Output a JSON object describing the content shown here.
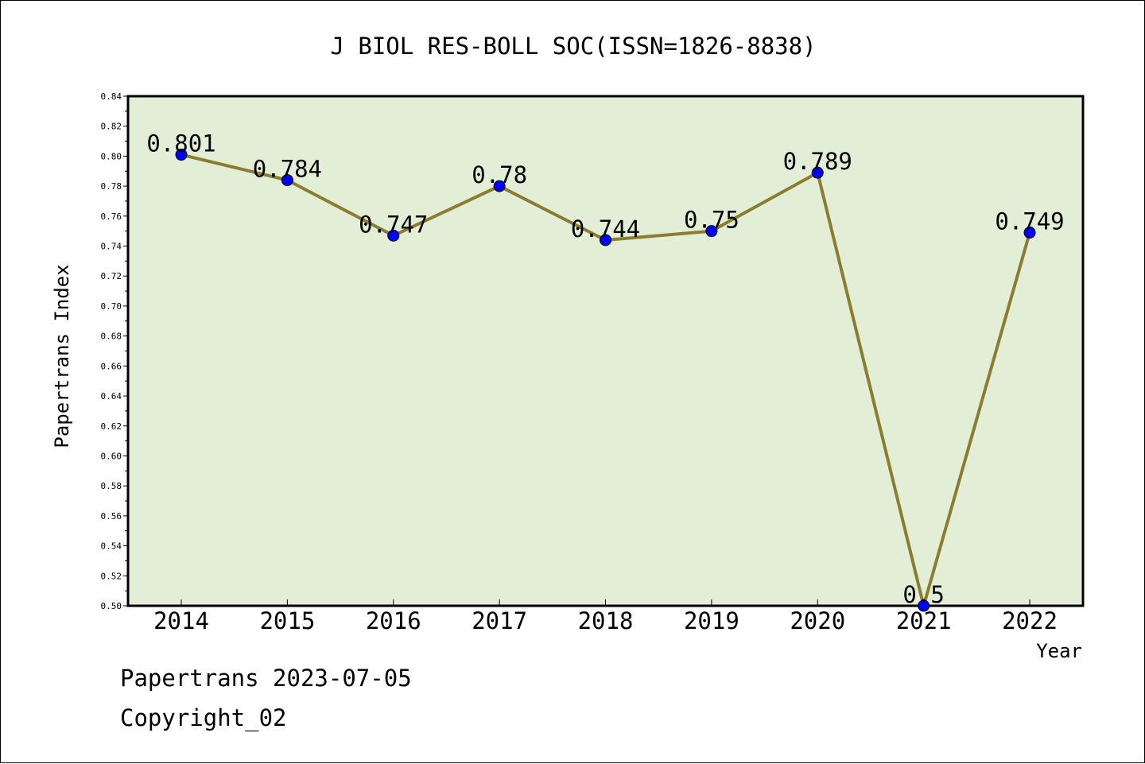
{
  "chart_data": {
    "type": "line",
    "title": "J BIOL RES-BOLL SOC(ISSN=1826-8838)",
    "xlabel": "Year",
    "ylabel": "Papertrans Index",
    "categories": [
      "2014",
      "2015",
      "2016",
      "2017",
      "2018",
      "2019",
      "2020",
      "2021",
      "2022"
    ],
    "series": [
      {
        "values": [
          0.801,
          0.784,
          0.747,
          0.78,
          0.744,
          0.75,
          0.789,
          0.5,
          0.749
        ],
        "labels": [
          "0.801",
          "0.784",
          "0.747",
          "0.78",
          "0.744",
          "0.75",
          "0.789",
          "0.5",
          "0.749"
        ]
      }
    ],
    "ylim": [
      0.5,
      0.84
    ],
    "yticks": [
      "0.50",
      "0.52",
      "0.54",
      "0.56",
      "0.58",
      "0.60",
      "0.62",
      "0.64",
      "0.66",
      "0.68",
      "0.70",
      "0.72",
      "0.74",
      "0.76",
      "0.78",
      "0.80",
      "0.82",
      "0.84"
    ],
    "grid": false,
    "colors": {
      "plot_background": "#e2efd6",
      "line": "#8b7d2f",
      "marker": "#0000ff"
    }
  },
  "footer": {
    "line1": "Papertrans 2023-07-05",
    "line2": "Copyright_02"
  }
}
